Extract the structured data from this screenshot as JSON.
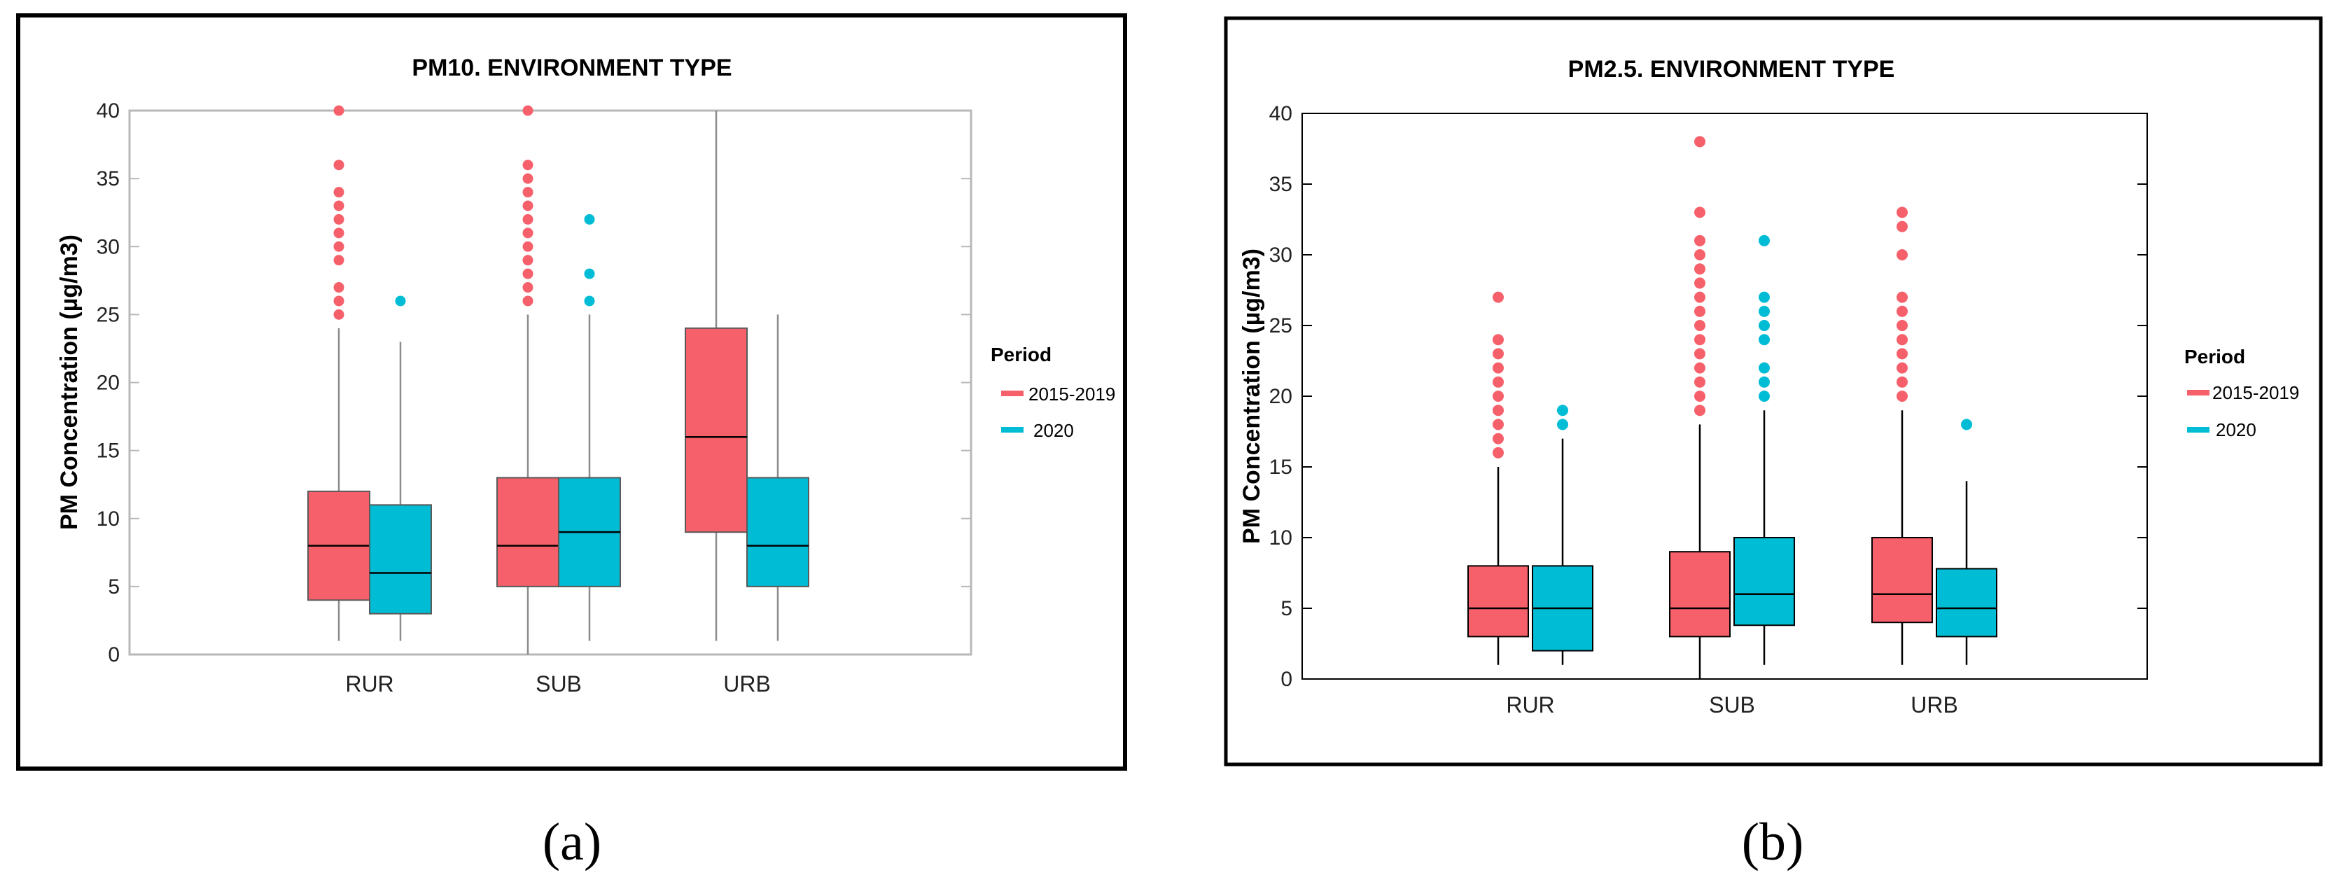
{
  "colors": {
    "period_2015_2019": "#F6606A",
    "period_2020": "#00BCD4"
  },
  "chart_data": [
    {
      "type": "box",
      "panel_label": "(a)",
      "title": "PM10. ENVIRONMENT TYPE",
      "xlabel": "",
      "ylabel": "PM Concentration (µg/m3)",
      "ylim": [
        0,
        40
      ],
      "yticks": [
        "0",
        "5",
        "10",
        "15",
        "20",
        "25",
        "30",
        "35",
        "40"
      ],
      "categories": [
        "RUR",
        "SUB",
        "URB"
      ],
      "legend": {
        "title": "Period",
        "position": "right",
        "entries": [
          "2015-2019",
          "2020"
        ]
      },
      "series": [
        {
          "name": "2015-2019",
          "boxes": [
            {
              "category": "RUR",
              "whisker_low": 1,
              "q1": 4,
              "median": 8,
              "q3": 12,
              "whisker_high": 24,
              "outliers": [
                25,
                26,
                27,
                29,
                30,
                31,
                32,
                33,
                34,
                36,
                40
              ]
            },
            {
              "category": "SUB",
              "whisker_low": 0,
              "q1": 5,
              "median": 8,
              "q3": 13,
              "whisker_high": 25,
              "outliers": [
                26,
                27,
                28,
                29,
                30,
                31,
                32,
                33,
                34,
                35,
                36,
                40
              ]
            },
            {
              "category": "URB",
              "whisker_low": 1,
              "q1": 9,
              "median": 16,
              "q3": 24,
              "whisker_high": 40,
              "outliers": []
            }
          ]
        },
        {
          "name": "2020",
          "boxes": [
            {
              "category": "RUR",
              "whisker_low": 1,
              "q1": 3,
              "median": 6,
              "q3": 11,
              "whisker_high": 23,
              "outliers": [
                26
              ]
            },
            {
              "category": "SUB",
              "whisker_low": 1,
              "q1": 5,
              "median": 9,
              "q3": 13,
              "whisker_high": 25,
              "outliers": [
                26,
                28,
                32
              ]
            },
            {
              "category": "URB",
              "whisker_low": 1,
              "q1": 5,
              "median": 8,
              "q3": 13,
              "whisker_high": 25,
              "outliers": []
            }
          ]
        }
      ]
    },
    {
      "type": "box",
      "panel_label": "(b)",
      "title": "PM2.5. ENVIRONMENT TYPE",
      "xlabel": "",
      "ylabel": "PM Concentration (µg/m3)",
      "ylim": [
        0,
        40
      ],
      "yticks": [
        "0",
        "5",
        "10",
        "15",
        "20",
        "25",
        "30",
        "35",
        "40"
      ],
      "categories": [
        "RUR",
        "SUB",
        "URB"
      ],
      "legend": {
        "title": "Period",
        "position": "right",
        "entries": [
          "2015-2019",
          "2020"
        ]
      },
      "series": [
        {
          "name": "2015-2019",
          "boxes": [
            {
              "category": "RUR",
              "whisker_low": 1,
              "q1": 3,
              "median": 5,
              "q3": 8,
              "whisker_high": 15,
              "outliers": [
                16,
                17,
                18,
                19,
                20,
                21,
                22,
                23,
                24,
                27
              ]
            },
            {
              "category": "SUB",
              "whisker_low": 0,
              "q1": 3,
              "median": 5,
              "q3": 9,
              "whisker_high": 18,
              "outliers": [
                19,
                20,
                21,
                22,
                23,
                24,
                25,
                26,
                27,
                28,
                29,
                30,
                31,
                33,
                38
              ]
            },
            {
              "category": "URB",
              "whisker_low": 1,
              "q1": 4,
              "median": 6,
              "q3": 10,
              "whisker_high": 19,
              "outliers": [
                20,
                21,
                22,
                23,
                24,
                25,
                26,
                27,
                30,
                32,
                33
              ]
            }
          ]
        },
        {
          "name": "2020",
          "boxes": [
            {
              "category": "RUR",
              "whisker_low": 1,
              "q1": 2,
              "median": 5,
              "q3": 8,
              "whisker_high": 17,
              "outliers": [
                18,
                19
              ]
            },
            {
              "category": "SUB",
              "whisker_low": 1,
              "q1": 3.8,
              "median": 6,
              "q3": 10,
              "whisker_high": 19,
              "outliers": [
                20,
                21,
                22,
                24,
                25,
                26,
                27,
                31
              ]
            },
            {
              "category": "URB",
              "whisker_low": 1,
              "q1": 3,
              "median": 5,
              "q3": 7.8,
              "whisker_high": 14,
              "outliers": [
                18
              ]
            }
          ]
        }
      ]
    }
  ]
}
